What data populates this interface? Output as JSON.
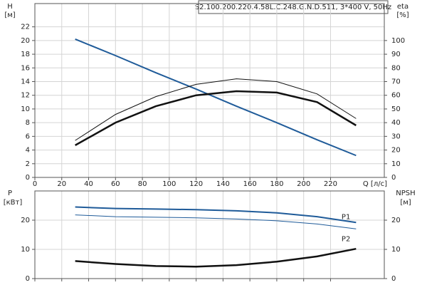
{
  "chart_data": [
    {
      "type": "line",
      "title": "S2.100.200.220.4.58L.C.248.G.N.D.511, 3*400 V, 50Hz",
      "x_label": "Q [л/с]",
      "y_label": "H",
      "y_unit": "[м]",
      "y2_label": "eta",
      "y2_unit": "[%]",
      "x": [
        30,
        60,
        90,
        120,
        150,
        180,
        210,
        239
      ],
      "xlim": [
        0,
        260
      ],
      "xticks": [
        0,
        20,
        40,
        60,
        80,
        100,
        120,
        140,
        160,
        180,
        200,
        220
      ],
      "ylim": [
        0,
        25.4
      ],
      "yticks": [
        0,
        2,
        4,
        6,
        8,
        10,
        12,
        14,
        16,
        18,
        20,
        22
      ],
      "y2lim": [
        0,
        127
      ],
      "y2ticks": [
        0,
        10,
        20,
        30,
        40,
        50,
        60,
        70,
        80,
        90,
        100
      ],
      "grid": true,
      "series": [
        {
          "color": "#1f5b99",
          "line_width": 2,
          "values": [
            20.2,
            17.8,
            15.3,
            12.9,
            10.4,
            8.0,
            5.5,
            3.2
          ]
        },
        {
          "color": "#111111",
          "line_width": 1,
          "axis": "y2",
          "values": [
            27,
            46,
            59,
            68,
            72,
            70,
            61,
            43
          ]
        },
        {
          "color": "#111111",
          "line_width": 2.5,
          "axis": "y2",
          "values": [
            23.5,
            40,
            52,
            60,
            63,
            62,
            55,
            38
          ]
        }
      ]
    },
    {
      "type": "line",
      "y_label": "P",
      "y_unit": "[кВт]",
      "y2_label": "NPSH",
      "y2_unit": "[м]",
      "x": [
        30,
        60,
        90,
        120,
        150,
        180,
        210,
        239
      ],
      "xlim": [
        0,
        260
      ],
      "ylim": [
        0,
        30
      ],
      "yticks": [
        0,
        10,
        20
      ],
      "y2lim": [
        0,
        30
      ],
      "y2ticks": [
        0,
        10,
        20
      ],
      "grid": true,
      "series": [
        {
          "name": "P1",
          "color": "#1f5b99",
          "line_width": 2,
          "values": [
            24.5,
            24.0,
            23.8,
            23.6,
            23.2,
            22.5,
            21.2,
            19.2
          ]
        },
        {
          "name": "P2",
          "color": "#1f5b99",
          "line_width": 1,
          "values": [
            21.8,
            21.2,
            21.0,
            20.8,
            20.4,
            19.8,
            18.7,
            17.0
          ]
        },
        {
          "color": "#111111",
          "line_width": 2.5,
          "axis": "y2",
          "values": [
            6,
            5,
            4.3,
            4.1,
            4.6,
            5.8,
            7.6,
            10.2
          ]
        }
      ]
    }
  ]
}
